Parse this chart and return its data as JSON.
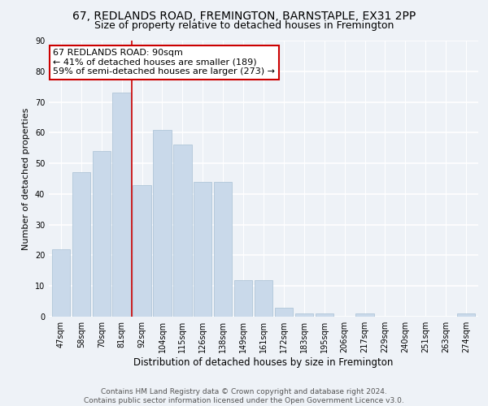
{
  "title": "67, REDLANDS ROAD, FREMINGTON, BARNSTAPLE, EX31 2PP",
  "subtitle": "Size of property relative to detached houses in Fremington",
  "xlabel": "Distribution of detached houses by size in Fremington",
  "ylabel": "Number of detached properties",
  "bar_labels": [
    "47sqm",
    "58sqm",
    "70sqm",
    "81sqm",
    "92sqm",
    "104sqm",
    "115sqm",
    "126sqm",
    "138sqm",
    "149sqm",
    "161sqm",
    "172sqm",
    "183sqm",
    "195sqm",
    "206sqm",
    "217sqm",
    "229sqm",
    "240sqm",
    "251sqm",
    "263sqm",
    "274sqm"
  ],
  "bar_values": [
    22,
    47,
    54,
    73,
    43,
    61,
    56,
    44,
    44,
    12,
    12,
    3,
    1,
    1,
    0,
    1,
    0,
    0,
    0,
    0,
    1
  ],
  "bar_color": "#c9d9ea",
  "bar_edgecolor": "#a8c0d4",
  "background_color": "#eef2f7",
  "grid_color": "#ffffff",
  "ylim": [
    0,
    90
  ],
  "yticks": [
    0,
    10,
    20,
    30,
    40,
    50,
    60,
    70,
    80,
    90
  ],
  "vline_x": 3.5,
  "vline_color": "#cc0000",
  "annotation_text": "67 REDLANDS ROAD: 90sqm\n← 41% of detached houses are smaller (189)\n59% of semi-detached houses are larger (273) →",
  "annotation_box_color": "#ffffff",
  "annotation_box_edgecolor": "#cc0000",
  "footer_text": "Contains HM Land Registry data © Crown copyright and database right 2024.\nContains public sector information licensed under the Open Government Licence v3.0.",
  "title_fontsize": 10,
  "subtitle_fontsize": 9,
  "xlabel_fontsize": 8.5,
  "ylabel_fontsize": 8,
  "tick_fontsize": 7,
  "annotation_fontsize": 8,
  "footer_fontsize": 6.5
}
